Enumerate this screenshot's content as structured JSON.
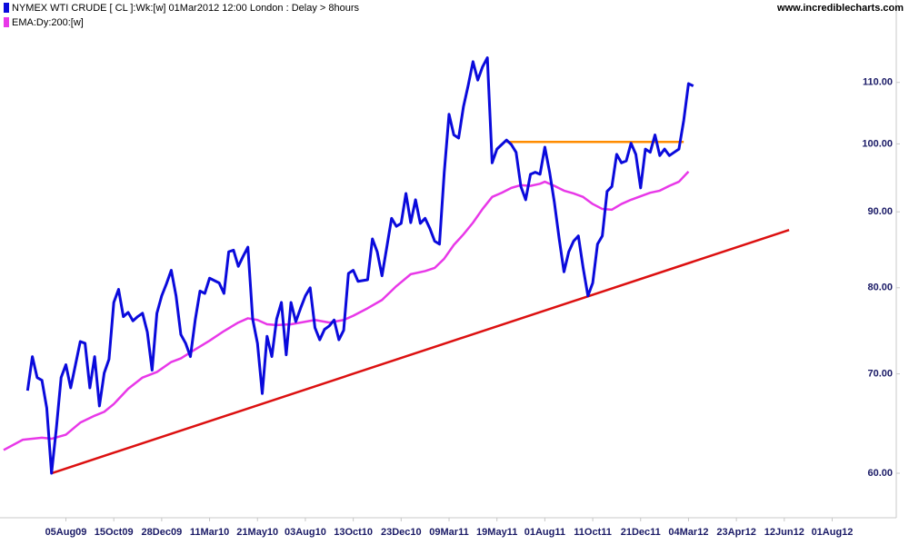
{
  "chart_data": {
    "type": "line",
    "source": "www.incrediblecharts.com",
    "log_y": true,
    "grid": false,
    "xlim": [
      0,
      186
    ],
    "ylim": [
      56,
      125
    ],
    "xticks": [
      {
        "value": 13,
        "label": "05Aug09"
      },
      {
        "value": 23,
        "label": "15Oct09"
      },
      {
        "value": 33,
        "label": "28Dec09"
      },
      {
        "value": 43,
        "label": "11Mar10"
      },
      {
        "value": 53,
        "label": "21May10"
      },
      {
        "value": 63,
        "label": "03Aug10"
      },
      {
        "value": 73,
        "label": "13Oct10"
      },
      {
        "value": 83,
        "label": "23Dec10"
      },
      {
        "value": 93,
        "label": "09Mar11"
      },
      {
        "value": 103,
        "label": "19May11"
      },
      {
        "value": 113,
        "label": "01Aug11"
      },
      {
        "value": 123,
        "label": "11Oct11"
      },
      {
        "value": 133,
        "label": "21Dec11"
      },
      {
        "value": 143,
        "label": "04Mar12"
      },
      {
        "value": 153,
        "label": "23Apr12"
      },
      {
        "value": 163,
        "label": "12Jun12"
      },
      {
        "value": 173,
        "label": "01Aug12"
      }
    ],
    "yticks": [
      {
        "value": 60,
        "label": "60.00"
      },
      {
        "value": 70,
        "label": "70.00"
      },
      {
        "value": 80,
        "label": "80.00"
      },
      {
        "value": 90,
        "label": "90.00"
      },
      {
        "value": 100,
        "label": "100.00"
      },
      {
        "value": 110,
        "label": "110.00"
      }
    ],
    "series": [
      {
        "name": "NYMEX WTI CRUDE [ CL ]:Wk:[w]  01Mar2012 12:00 London : Delay > 8hours",
        "color": "#0a0adc",
        "x": [
          5,
          6,
          7,
          8,
          9,
          10,
          11,
          12,
          13,
          14,
          15,
          16,
          17,
          18,
          19,
          20,
          21,
          22,
          23,
          24,
          25,
          26,
          27,
          28,
          29,
          30,
          31,
          32,
          33,
          34,
          35,
          36,
          37,
          38,
          39,
          40,
          41,
          42,
          43,
          44,
          45,
          46,
          47,
          48,
          49,
          50,
          51,
          52,
          53,
          54,
          55,
          56,
          57,
          58,
          59,
          60,
          61,
          62,
          63,
          64,
          65,
          66,
          67,
          68,
          69,
          70,
          71,
          72,
          73,
          74,
          75,
          76,
          77,
          78,
          79,
          80,
          81,
          82,
          83,
          84,
          85,
          86,
          87,
          88,
          89,
          90,
          91,
          92,
          93,
          94,
          95,
          96,
          97,
          98,
          99,
          100,
          101,
          102,
          103,
          104,
          105,
          106,
          107,
          108,
          109,
          110,
          111,
          112,
          113,
          114,
          115,
          116,
          117,
          118,
          119,
          120,
          121,
          122,
          123,
          124,
          125,
          126,
          127,
          128,
          129,
          130,
          131,
          132,
          133,
          134,
          135,
          136,
          137,
          138,
          139,
          140,
          141,
          142,
          143,
          144
        ],
        "values": [
          68.2,
          71.9,
          69.6,
          69.3,
          66.4,
          60.0,
          64.3,
          69.6,
          71.0,
          68.5,
          71.0,
          73.6,
          73.4,
          68.5,
          71.9,
          66.6,
          70.1,
          71.6,
          78.2,
          79.8,
          76.5,
          77.0,
          76.0,
          76.5,
          76.9,
          74.7,
          70.4,
          76.9,
          79.0,
          80.5,
          82.2,
          79.0,
          74.4,
          73.4,
          71.9,
          76.1,
          79.6,
          79.3,
          81.2,
          80.9,
          80.6,
          79.3,
          84.6,
          84.8,
          82.7,
          84.0,
          85.2,
          76.2,
          73.4,
          67.9,
          74.2,
          71.9,
          76.2,
          78.2,
          72.1,
          78.2,
          75.9,
          77.5,
          79.0,
          80.0,
          75.2,
          73.8,
          75.0,
          75.4,
          76.1,
          73.8,
          74.9,
          81.8,
          82.2,
          80.8,
          80.9,
          81.0,
          86.3,
          84.6,
          81.5,
          85.2,
          89.1,
          88.0,
          88.4,
          92.6,
          88.5,
          91.7,
          88.4,
          89.1,
          87.7,
          86.0,
          85.6,
          95.7,
          104.7,
          101.4,
          100.9,
          105.9,
          109.5,
          113.6,
          110.4,
          112.7,
          114.3,
          97.1,
          99.2,
          99.9,
          100.6,
          99.9,
          98.7,
          93.6,
          91.7,
          95.4,
          95.7,
          95.4,
          99.5,
          95.7,
          91.3,
          86.3,
          82.0,
          84.6,
          86.0,
          86.7,
          82.5,
          79.0,
          80.6,
          85.6,
          86.7,
          92.9,
          93.6,
          98.4,
          97.1,
          97.4,
          100.1,
          98.4,
          93.4,
          99.2,
          98.7,
          101.4,
          98.2,
          99.2,
          98.2,
          98.7,
          99.2,
          103.7,
          109.8,
          109.4
        ]
      },
      {
        "name": "EMA:Dy:200:[w]",
        "color": "#e838e8",
        "x": [
          0,
          4,
          8,
          10,
          13,
          16,
          19,
          21,
          23,
          26,
          29,
          32,
          35,
          37,
          40,
          43,
          46,
          49,
          51,
          53,
          55,
          57,
          60,
          62,
          65,
          68,
          71,
          73,
          76,
          79,
          82,
          85,
          88,
          90,
          92,
          94,
          96,
          98,
          100,
          102,
          104,
          106,
          108,
          110,
          112,
          113,
          115,
          117,
          119,
          121,
          123,
          125,
          127,
          129,
          131,
          133,
          135,
          137,
          139,
          141,
          143
        ],
        "values": [
          62.2,
          63.2,
          63.4,
          63.3,
          63.7,
          64.9,
          65.6,
          66.0,
          66.8,
          68.4,
          69.6,
          70.2,
          71.3,
          71.7,
          72.7,
          73.7,
          74.8,
          75.8,
          76.3,
          76.1,
          75.6,
          75.5,
          75.6,
          75.8,
          76.1,
          75.8,
          76.1,
          76.6,
          77.5,
          78.5,
          80.2,
          81.7,
          82.1,
          82.5,
          83.7,
          85.5,
          86.9,
          88.5,
          90.4,
          92.1,
          92.7,
          93.4,
          93.8,
          93.7,
          94.0,
          94.3,
          93.7,
          93.0,
          92.6,
          92.1,
          91.1,
          90.4,
          90.3,
          91.1,
          91.7,
          92.2,
          92.7,
          93.0,
          93.7,
          94.3,
          95.8
        ]
      }
    ],
    "trendlines": [
      {
        "color": "#dc1010",
        "x": [
          10,
          164
        ],
        "values": [
          60.0,
          87.5
        ]
      },
      {
        "color": "#ff8c00",
        "x": [
          105,
          142
        ],
        "values": [
          100.3,
          100.3
        ]
      }
    ]
  }
}
